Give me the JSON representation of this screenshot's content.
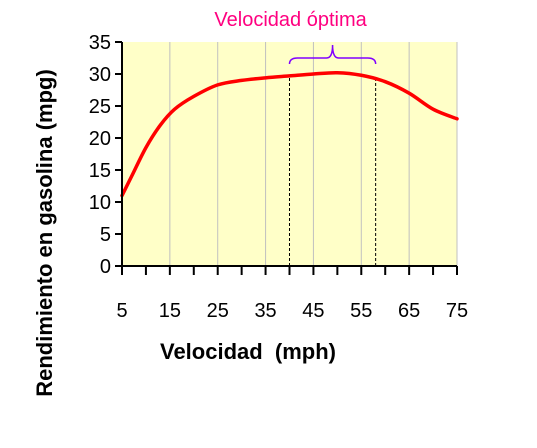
{
  "chart_data": {
    "type": "line",
    "xlabel": "Velocidad  (mph)",
    "ylabel": "Rendimiento en gasolina (mpg)",
    "xlim": [
      5,
      75
    ],
    "ylim": [
      0,
      35
    ],
    "x_ticks": [
      5,
      15,
      25,
      35,
      45,
      55,
      65,
      75
    ],
    "y_ticks": [
      0,
      5,
      10,
      15,
      20,
      25,
      30,
      35
    ],
    "grid": "vertical",
    "plot_background": "#ffffc8",
    "series": [
      {
        "color": "#ff0000",
        "x": [
          5,
          7,
          10,
          13,
          16,
          20,
          25,
          30,
          35,
          40,
          45,
          50,
          55,
          60,
          65,
          70,
          75
        ],
        "y": [
          11,
          14,
          18.5,
          22,
          24.5,
          26.5,
          28.3,
          29,
          29.4,
          29.7,
          30,
          30.2,
          29.8,
          28.8,
          27,
          24.5,
          23
        ]
      }
    ],
    "annotation": {
      "text": "Velocidad óptima",
      "color": "#ff0080",
      "bracket_color": "#8000ff",
      "x_range": [
        40,
        58
      ]
    }
  }
}
